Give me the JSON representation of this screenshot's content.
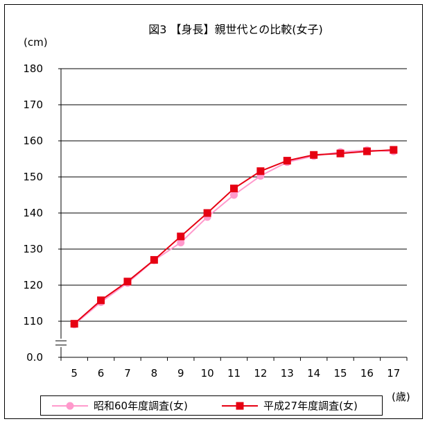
{
  "chart_data": {
    "type": "line",
    "title": "図3 【身長】親世代との比較(女子)",
    "ylabel": "(cm)",
    "xlabel": "(歳)",
    "categories": [
      "5",
      "6",
      "7",
      "8",
      "9",
      "10",
      "11",
      "12",
      "13",
      "14",
      "15",
      "16",
      "17"
    ],
    "y_ticks": [
      "0.0",
      "110",
      "120",
      "130",
      "140",
      "150",
      "160",
      "170",
      "180"
    ],
    "ylim": [
      100,
      180
    ],
    "axis_break": true,
    "grid": true,
    "legend_position": "bottom",
    "series": [
      {
        "name": "昭和60年度調査(女)",
        "color": "#ff99cc",
        "marker": "circle",
        "values": [
          109.1,
          115.3,
          120.6,
          126.9,
          131.8,
          138.9,
          145.0,
          150.3,
          154.1,
          155.8,
          156.9,
          157.4,
          157.1
        ]
      },
      {
        "name": "平成27年度調査(女)",
        "color": "#e60012",
        "marker": "square",
        "values": [
          109.3,
          115.8,
          121.0,
          127.0,
          133.5,
          140.0,
          146.8,
          151.6,
          154.5,
          156.1,
          156.5,
          157.1,
          157.5
        ]
      }
    ]
  }
}
